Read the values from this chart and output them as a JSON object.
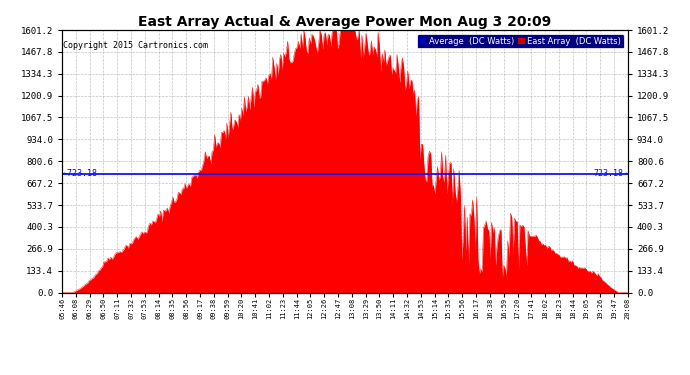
{
  "title": "East Array Actual & Average Power Mon Aug 3 20:09",
  "copyright": "Copyright 2015 Cartronics.com",
  "average_value": 723.18,
  "y_max": 1601.2,
  "y_min": 0.0,
  "y_ticks": [
    0.0,
    133.4,
    266.9,
    400.3,
    533.7,
    667.2,
    800.6,
    934.0,
    1067.5,
    1200.9,
    1334.3,
    1467.8,
    1601.2
  ],
  "background_color": "#ffffff",
  "plot_bg_color": "#ffffff",
  "fill_color": "#ff0000",
  "line_color": "#ff0000",
  "avg_line_color": "#0000ff",
  "grid_color": "#aaaaaa",
  "title_color": "#000000",
  "legend_avg_bg": "#0000cc",
  "legend_east_bg": "#cc0000",
  "x_labels": [
    "05:46",
    "06:08",
    "06:29",
    "06:50",
    "07:11",
    "07:32",
    "07:53",
    "08:14",
    "08:35",
    "08:56",
    "09:17",
    "09:38",
    "09:59",
    "10:20",
    "10:41",
    "11:02",
    "11:23",
    "11:44",
    "12:05",
    "12:26",
    "12:47",
    "13:08",
    "13:29",
    "13:50",
    "14:11",
    "14:32",
    "14:53",
    "15:14",
    "15:35",
    "15:56",
    "16:17",
    "16:38",
    "16:59",
    "17:20",
    "17:41",
    "18:02",
    "18:23",
    "18:44",
    "19:05",
    "19:26",
    "19:47",
    "20:08"
  ],
  "num_points": 420
}
